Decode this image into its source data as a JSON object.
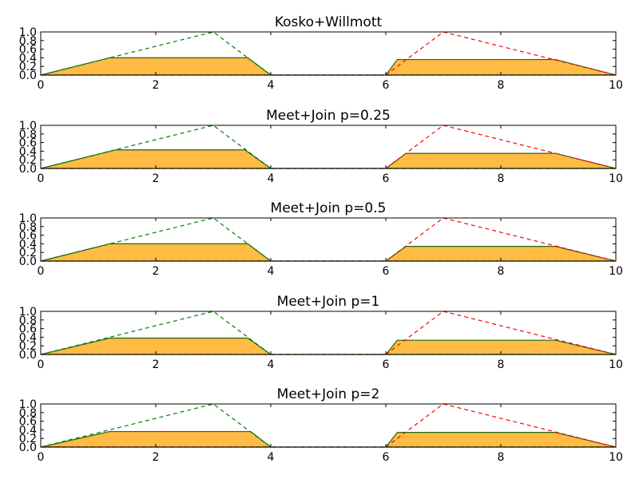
{
  "colors": {
    "fill": "#ffbb44",
    "fill_edge": "#1a6b1a",
    "green_dashed": "#008000",
    "red_dashed": "#ff0000",
    "axes": "#000000",
    "background": "#ffffff"
  },
  "chart_data": [
    {
      "type": "area",
      "title": "Kosko+Willmott",
      "xlim": [
        0,
        10
      ],
      "ylim": [
        0,
        1
      ],
      "xticks": [
        "0",
        "2",
        "4",
        "6",
        "8",
        "10"
      ],
      "yticks": [
        "0.0",
        "0.2",
        "0.4",
        "0.6",
        "0.8",
        "1.0"
      ],
      "grid": false,
      "series": [
        {
          "style": "filled",
          "x": [
            0,
            1.2,
            3.6,
            4,
            6,
            6.2,
            8.95,
            10
          ],
          "y": [
            0,
            0.4,
            0.4,
            0,
            0,
            0.36,
            0.36,
            0
          ]
        },
        {
          "style": "green-dashed",
          "x": [
            0,
            3,
            4,
            10
          ],
          "y": [
            0,
            1,
            0,
            0
          ]
        },
        {
          "style": "red-dashed",
          "x": [
            0,
            6,
            7,
            10
          ],
          "y": [
            0,
            0,
            1,
            0
          ]
        }
      ]
    },
    {
      "type": "area",
      "title": "Meet+Join p=0.25",
      "xlim": [
        0,
        10
      ],
      "ylim": [
        0,
        1
      ],
      "xticks": [
        "0",
        "2",
        "4",
        "6",
        "8",
        "10"
      ],
      "yticks": [
        "0.0",
        "0.2",
        "0.4",
        "0.6",
        "0.8",
        "1.0"
      ],
      "grid": false,
      "series": [
        {
          "style": "filled",
          "x": [
            0,
            1.3,
            3.55,
            4,
            6,
            6.35,
            8.95,
            10
          ],
          "y": [
            0,
            0.43,
            0.43,
            0,
            0,
            0.35,
            0.35,
            0
          ]
        },
        {
          "style": "green-dashed",
          "x": [
            0,
            3,
            4,
            10
          ],
          "y": [
            0,
            1,
            0,
            0
          ]
        },
        {
          "style": "red-dashed",
          "x": [
            0,
            6,
            7,
            10
          ],
          "y": [
            0,
            0,
            1,
            0
          ]
        }
      ]
    },
    {
      "type": "area",
      "title": "Meet+Join p=0.5",
      "xlim": [
        0,
        10
      ],
      "ylim": [
        0,
        1
      ],
      "xticks": [
        "0",
        "2",
        "4",
        "6",
        "8",
        "10"
      ],
      "yticks": [
        "0.0",
        "0.2",
        "0.4",
        "0.6",
        "0.8",
        "1.0"
      ],
      "grid": false,
      "series": [
        {
          "style": "filled",
          "x": [
            0,
            1.2,
            3.6,
            4,
            6,
            6.35,
            8.95,
            10
          ],
          "y": [
            0,
            0.4,
            0.4,
            0,
            0,
            0.34,
            0.34,
            0
          ]
        },
        {
          "style": "green-dashed",
          "x": [
            0,
            3,
            4,
            10
          ],
          "y": [
            0,
            1,
            0,
            0
          ]
        },
        {
          "style": "red-dashed",
          "x": [
            0,
            6,
            7,
            10
          ],
          "y": [
            0,
            0,
            1,
            0
          ]
        }
      ]
    },
    {
      "type": "area",
      "title": "Meet+Join p=1",
      "xlim": [
        0,
        10
      ],
      "ylim": [
        0,
        1
      ],
      "xticks": [
        "0",
        "2",
        "4",
        "6",
        "8",
        "10"
      ],
      "yticks": [
        "0.0",
        "0.2",
        "0.4",
        "0.6",
        "0.8",
        "1.0"
      ],
      "grid": false,
      "series": [
        {
          "style": "filled",
          "x": [
            0,
            1.2,
            3.6,
            4,
            6,
            6.2,
            8.95,
            10
          ],
          "y": [
            0,
            0.38,
            0.38,
            0,
            0,
            0.33,
            0.33,
            0
          ]
        },
        {
          "style": "green-dashed",
          "x": [
            0,
            3,
            4,
            10
          ],
          "y": [
            0,
            1,
            0,
            0
          ]
        },
        {
          "style": "red-dashed",
          "x": [
            0,
            6,
            7,
            10
          ],
          "y": [
            0,
            0,
            1,
            0
          ]
        }
      ]
    },
    {
      "type": "area",
      "title": "Meet+Join p=2",
      "xlim": [
        0,
        10
      ],
      "ylim": [
        0,
        1
      ],
      "xticks": [
        "0",
        "2",
        "4",
        "6",
        "8",
        "10"
      ],
      "yticks": [
        "0.0",
        "0.2",
        "0.4",
        "0.6",
        "0.8",
        "1.0"
      ],
      "grid": false,
      "series": [
        {
          "style": "filled",
          "x": [
            0,
            1.2,
            3.65,
            4,
            6,
            6.2,
            8.95,
            10
          ],
          "y": [
            0,
            0.36,
            0.36,
            0,
            0,
            0.34,
            0.34,
            0
          ]
        },
        {
          "style": "green-dashed",
          "x": [
            0,
            3,
            4,
            10
          ],
          "y": [
            0,
            1,
            0,
            0
          ]
        },
        {
          "style": "red-dashed",
          "x": [
            0,
            6,
            7,
            10
          ],
          "y": [
            0,
            0,
            1,
            0
          ]
        }
      ]
    }
  ]
}
